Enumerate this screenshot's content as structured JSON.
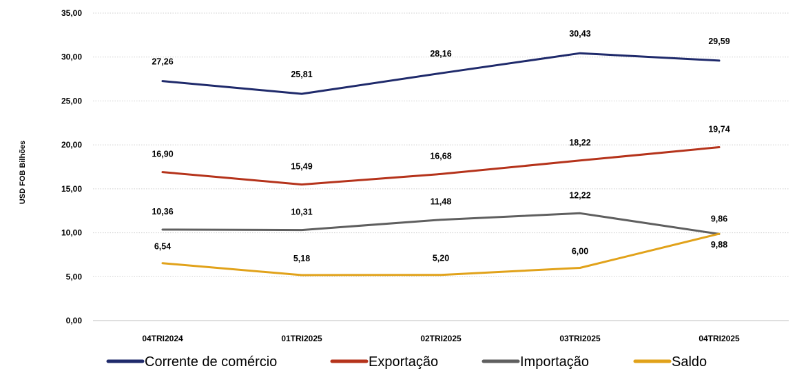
{
  "chart_data": {
    "type": "line",
    "title": "",
    "xlabel": "",
    "ylabel": "USD FOB Bilhões",
    "categories": [
      "04TRI2024",
      "01TRI2025",
      "02TRI2025",
      "03TRI2025",
      "04TRI2025"
    ],
    "ylim": [
      0,
      35
    ],
    "yticks": [
      "0,00",
      "5,00",
      "10,00",
      "15,00",
      "20,00",
      "25,00",
      "30,00",
      "35,00"
    ],
    "grid": "horizontal dotted",
    "legend_position": "bottom",
    "series": [
      {
        "name": "Corrente de comércio",
        "color": "#1f2a6b",
        "values": [
          27.26,
          25.81,
          28.16,
          30.43,
          29.59
        ],
        "labels": [
          "27,26",
          "25,81",
          "28,16",
          "30,43",
          "29,59"
        ]
      },
      {
        "name": "Exportação",
        "color": "#b5331b",
        "values": [
          16.9,
          15.49,
          16.68,
          18.22,
          19.74
        ],
        "labels": [
          "16,90",
          "15,49",
          "16,68",
          "18,22",
          "19,74"
        ]
      },
      {
        "name": "Importação",
        "color": "#5f5f5f",
        "values": [
          10.36,
          10.31,
          11.48,
          12.22,
          9.86
        ],
        "labels": [
          "10,36",
          "10,31",
          "11,48",
          "12,22",
          "9,86"
        ]
      },
      {
        "name": "Saldo",
        "color": "#e1a21a",
        "values": [
          6.54,
          5.18,
          5.2,
          6.0,
          9.88
        ],
        "labels": [
          "6,54",
          "5,18",
          "5,20",
          "6,00",
          "9,88"
        ]
      }
    ]
  }
}
